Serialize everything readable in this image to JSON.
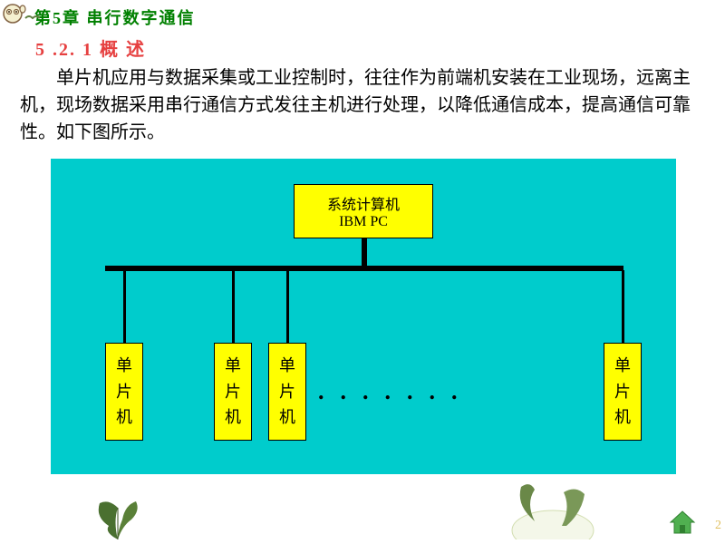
{
  "chapter_title": "第5章  串行数字通信",
  "section_title": "5 .2. 1     概  述",
  "body_text": "单片机应用与数据采集或工业控制时，往往作为前端机安装在工业现场，远离主机，现场数据采用串行通信方式发往主机进行处理，以降低通信成本，提高通信可靠性。如下图所示。",
  "diagram": {
    "bg_color": "#00cccc",
    "box_color": "#ffff00",
    "top_box_line1": "系统计算机",
    "top_box_line2": "IBM PC",
    "mcu_label": "单片机",
    "dots": ".......",
    "mcu_positions": [
      60,
      180,
      240,
      610
    ],
    "drop_positions": [
      80,
      200,
      260,
      630
    ]
  },
  "page_number": "2"
}
